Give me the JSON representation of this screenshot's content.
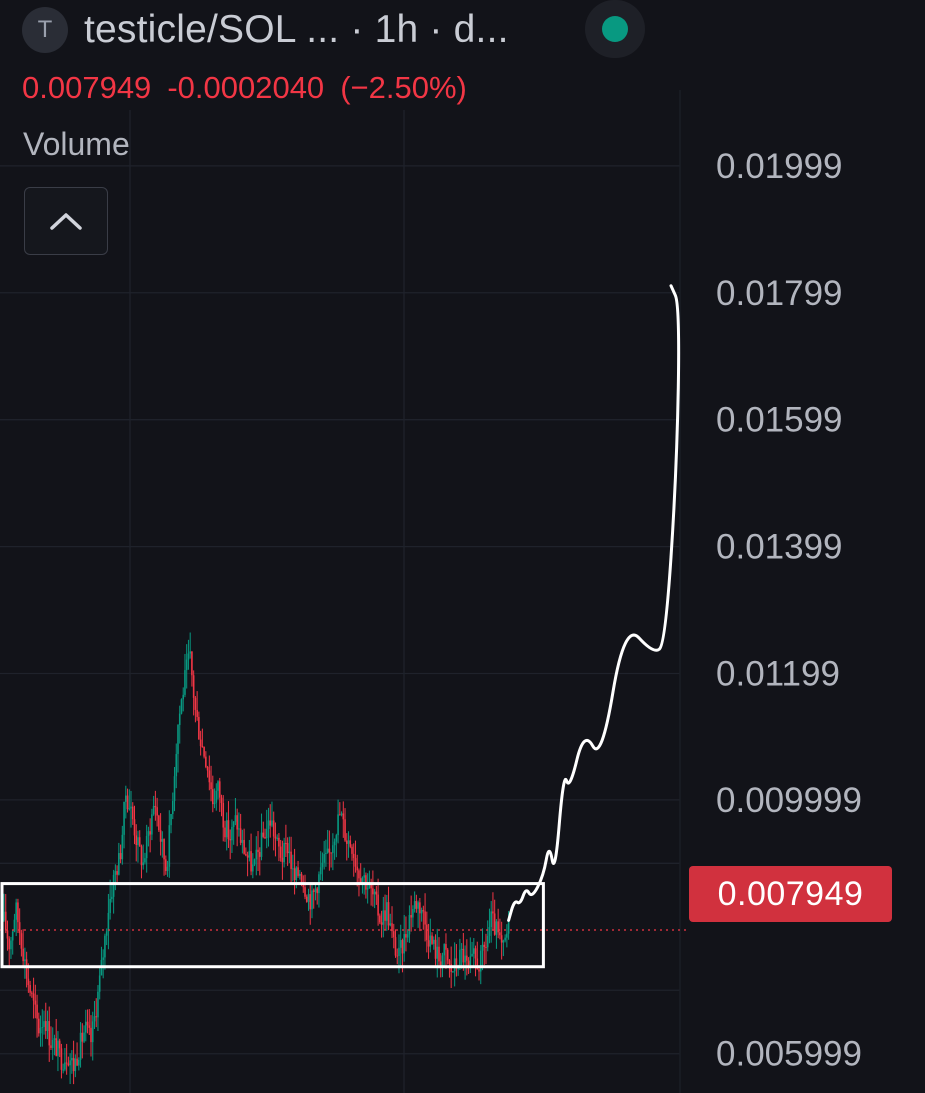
{
  "header": {
    "symbol_badge": "T",
    "title": "testicle/SOL ... · 1h · d...",
    "status_color": "#089981"
  },
  "quote": {
    "last": "0.007949",
    "change": "-0.0002040",
    "change_pct": "(−2.50%)"
  },
  "indicator": {
    "label": "Volume"
  },
  "icons": {
    "collapse": "chevron-up-icon",
    "status": "status-dot-icon",
    "badge": "symbol-badge-icon"
  },
  "colors": {
    "background": "#121319",
    "grid": "#1f222b",
    "up": "#089981",
    "down": "#f23645",
    "axis_text": "#b2b5be",
    "price_tag": "#d1313e",
    "annotation": "#ffffff"
  },
  "chart_data": {
    "type": "candlestick",
    "interval": "1h",
    "y_axis_side": "right",
    "y_ticks": [
      {
        "value": 0.01999,
        "label": "0.01999"
      },
      {
        "value": 0.01799,
        "label": "0.01799"
      },
      {
        "value": 0.01599,
        "label": "0.01599"
      },
      {
        "value": 0.01399,
        "label": "0.01399"
      },
      {
        "value": 0.01199,
        "label": "0.01199"
      },
      {
        "value": 0.009999,
        "label": "0.009999"
      },
      {
        "value": 0.005999,
        "label": "0.005999"
      }
    ],
    "ylim": [
      0.00538,
      0.02087
    ],
    "last_price": 0.007949,
    "last_price_label": "0.007949",
    "grid": true,
    "series_path": [
      [
        0,
        0.0081
      ],
      [
        2,
        0.0077
      ],
      [
        4,
        0.0083
      ],
      [
        6,
        0.0078
      ],
      [
        8,
        0.0072
      ],
      [
        10,
        0.0068
      ],
      [
        12,
        0.0064
      ],
      [
        14,
        0.0066
      ],
      [
        16,
        0.0062
      ],
      [
        18,
        0.0061
      ],
      [
        20,
        0.0059
      ],
      [
        22,
        0.006
      ],
      [
        24,
        0.0058
      ],
      [
        26,
        0.0061
      ],
      [
        28,
        0.0064
      ],
      [
        30,
        0.0062
      ],
      [
        32,
        0.0068
      ],
      [
        34,
        0.0075
      ],
      [
        36,
        0.0083
      ],
      [
        38,
        0.0088
      ],
      [
        40,
        0.0091
      ],
      [
        42,
        0.0101
      ],
      [
        44,
        0.0098
      ],
      [
        46,
        0.0093
      ],
      [
        48,
        0.009
      ],
      [
        50,
        0.0095
      ],
      [
        52,
        0.01
      ],
      [
        54,
        0.0094
      ],
      [
        56,
        0.0089
      ],
      [
        58,
        0.01
      ],
      [
        60,
        0.0112
      ],
      [
        62,
        0.0118
      ],
      [
        64,
        0.0123
      ],
      [
        66,
        0.0114
      ],
      [
        68,
        0.0109
      ],
      [
        70,
        0.0106
      ],
      [
        72,
        0.01
      ],
      [
        74,
        0.0102
      ],
      [
        76,
        0.0096
      ],
      [
        78,
        0.0094
      ],
      [
        80,
        0.0097
      ],
      [
        82,
        0.0093
      ],
      [
        84,
        0.0091
      ],
      [
        86,
        0.0089
      ],
      [
        88,
        0.0092
      ],
      [
        90,
        0.0095
      ],
      [
        92,
        0.0097
      ],
      [
        94,
        0.0093
      ],
      [
        96,
        0.0091
      ],
      [
        98,
        0.0093
      ],
      [
        100,
        0.0087
      ],
      [
        102,
        0.0089
      ],
      [
        104,
        0.0086
      ],
      [
        106,
        0.0084
      ],
      [
        108,
        0.0087
      ],
      [
        110,
        0.009
      ],
      [
        112,
        0.0091
      ],
      [
        114,
        0.0095
      ],
      [
        116,
        0.0098
      ],
      [
        118,
        0.0094
      ],
      [
        120,
        0.0093
      ],
      [
        122,
        0.0089
      ],
      [
        124,
        0.0088
      ],
      [
        126,
        0.0086
      ],
      [
        128,
        0.0084
      ],
      [
        130,
        0.0081
      ],
      [
        132,
        0.0083
      ],
      [
        134,
        0.0078
      ],
      [
        136,
        0.0075
      ],
      [
        138,
        0.0078
      ],
      [
        140,
        0.0082
      ],
      [
        142,
        0.0084
      ],
      [
        144,
        0.0083
      ],
      [
        146,
        0.0079
      ],
      [
        148,
        0.0077
      ],
      [
        150,
        0.0075
      ],
      [
        152,
        0.0076
      ],
      [
        154,
        0.0073
      ],
      [
        156,
        0.0074
      ],
      [
        158,
        0.0076
      ],
      [
        160,
        0.0073
      ],
      [
        162,
        0.0075
      ],
      [
        164,
        0.0074
      ],
      [
        166,
        0.0077
      ],
      [
        168,
        0.0081
      ],
      [
        170,
        0.0079
      ],
      [
        172,
        0.0076
      ],
      [
        174,
        0.008
      ]
    ],
    "series_path_x_max": 174,
    "volatility": 0.00022,
    "annotations": [
      {
        "kind": "rectangle",
        "label": "",
        "x_range": [
          0,
          186
        ],
        "y_range": [
          0.00737,
          0.00868
        ]
      },
      {
        "kind": "freehand-projection",
        "label": "",
        "points": [
          [
            174,
            0.0081
          ],
          [
            176,
            0.00842
          ],
          [
            178,
            0.00835
          ],
          [
            180,
            0.00862
          ],
          [
            182,
            0.00845
          ],
          [
            186,
            0.0088
          ],
          [
            188,
            0.00932
          ],
          [
            190,
            0.0088
          ],
          [
            193,
            0.01045
          ],
          [
            195,
            0.01015
          ],
          [
            200,
            0.0111
          ],
          [
            206,
            0.0106
          ],
          [
            214,
            0.0128
          ],
          [
            224,
            0.0123
          ],
          [
            228,
            0.01245
          ],
          [
            232,
            0.0152
          ],
          [
            233,
            0.0178
          ],
          [
            230,
            0.0181
          ]
        ]
      }
    ]
  }
}
